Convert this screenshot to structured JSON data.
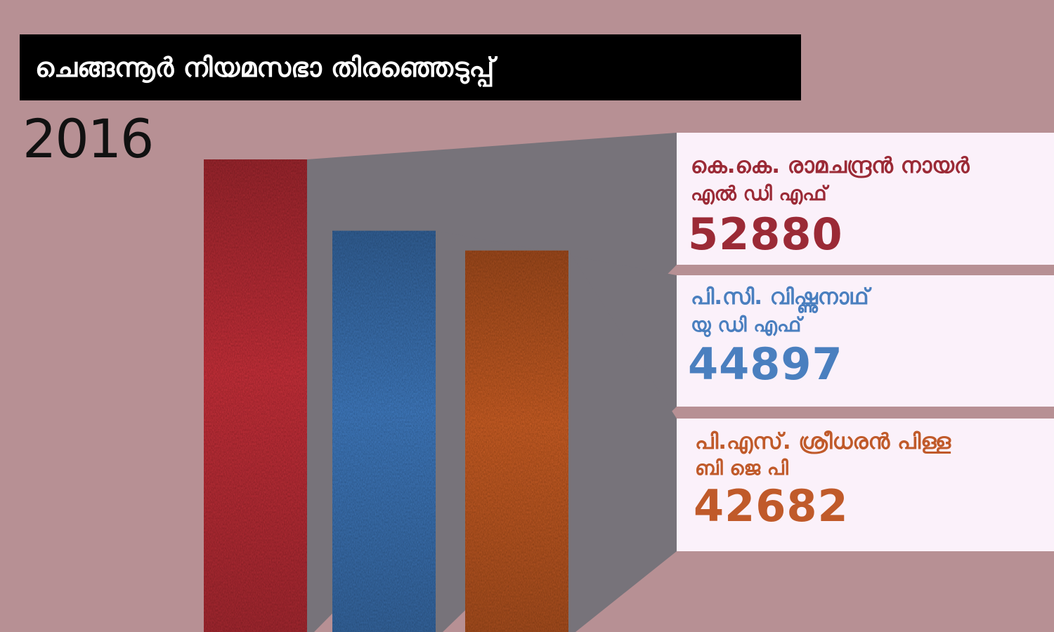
{
  "header": {
    "title": "ചെങ്ങന്നൂർ നിയമസഭാ തിരഞ്ഞെടുപ്പ്",
    "year": "2016"
  },
  "colors": {
    "background": "#b79094",
    "shadow": "#77737a",
    "card": "#fbf1fa",
    "ldf": "#c5323b",
    "udf": "#3f79bd",
    "bjp": "#c85d26"
  },
  "chart_data": {
    "type": "bar",
    "title": "ചെങ്ങന്നൂർ നിയമസഭാ തിരഞ്ഞെടുപ്പ്",
    "subtitle": "2016",
    "categories": [
      "കെ.കെ. രാമചന്ദ്രൻ നായർ",
      "പി.സി. വിഷ്ണുനാഥ്",
      "പി.എസ്. ശ്രീധരൻ പിള്ള"
    ],
    "values": [
      52880,
      44897,
      42682
    ],
    "xlabel": "",
    "ylabel": "",
    "grid": false,
    "legend": "right",
    "candidates": [
      {
        "name": "കെ.കെ. രാമചന്ദ്രൻ നായർ",
        "party": "എൽ ഡി എഫ്",
        "votes_text": "52880",
        "votes": 52880,
        "color": "#c5323b",
        "text_color": "#9b2a36"
      },
      {
        "name": "പി.സി. വിഷ്ണുനാഥ്",
        "party": "യു ഡി എഫ്",
        "votes_text": "44897",
        "votes": 44897,
        "color": "#3f79bd",
        "text_color": "#4a7fbf"
      },
      {
        "name": "പി.എസ്. ശ്രീധരൻ പിള്ള",
        "party": "ബി ജെ പി",
        "votes_text": "42682",
        "votes": 42682,
        "color": "#c85d26",
        "text_color": "#c05a2a"
      }
    ]
  }
}
